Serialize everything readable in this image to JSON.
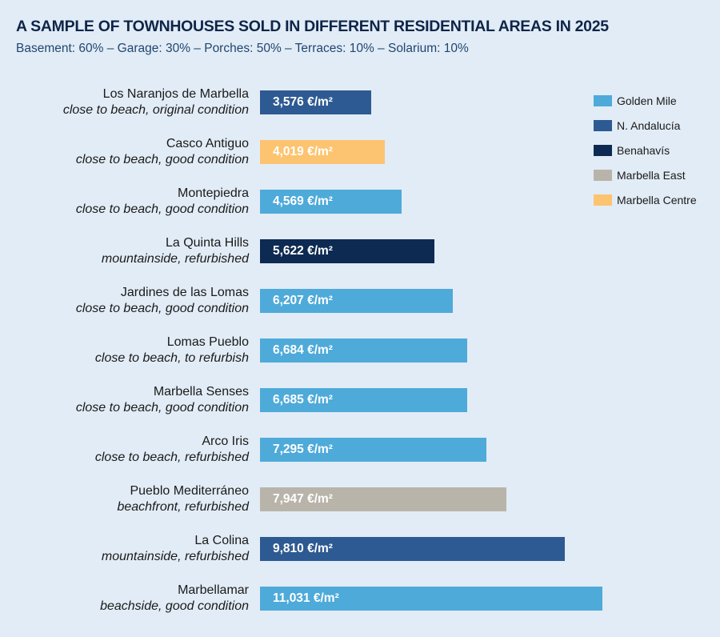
{
  "chart_data": {
    "type": "bar",
    "orientation": "horizontal",
    "title": "A SAMPLE OF TOWNHOUSES SOLD IN DIFFERENT RESIDENTIAL AREAS IN 2025",
    "subtitle": "Basement: 60% – Garage: 30% – Porches: 50% – Terraces: 10% – Solarium: 10%",
    "unit": "€/m²",
    "legend_position": "top-right",
    "legend": [
      {
        "name": "Golden Mile",
        "color": "#4eaad9"
      },
      {
        "name": "N. Andalucía",
        "color": "#2d5a92"
      },
      {
        "name": "Benahavís",
        "color": "#0d2a52"
      },
      {
        "name": "Marbella East",
        "color": "#b9b4aa"
      },
      {
        "name": "Marbella Centre",
        "color": "#fcc470"
      }
    ],
    "bars": [
      {
        "name": "Los Naranjos de Marbella",
        "desc": "close to beach, original condition",
        "value": 3576,
        "label": "3,576 €/m²",
        "area": 1
      },
      {
        "name": "Casco Antiguo",
        "desc": "close to beach, good condition",
        "value": 4019,
        "label": "4,019 €/m²",
        "area": 4
      },
      {
        "name": "Montepiedra",
        "desc": "close to beach, good condition",
        "value": 4569,
        "label": "4,569 €/m²",
        "area": 0
      },
      {
        "name": "La Quinta Hills",
        "desc": "mountainside, refurbished",
        "value": 5622,
        "label": "5,622 €/m²",
        "area": 2
      },
      {
        "name": "Jardines de las Lomas",
        "desc": "close to beach, good condition",
        "value": 6207,
        "label": "6,207 €/m²",
        "area": 0
      },
      {
        "name": "Lomas Pueblo",
        "desc": "close to beach, to refurbish",
        "value": 6684,
        "label": "6,684 €/m²",
        "area": 0
      },
      {
        "name": "Marbella Senses",
        "desc": "close to beach, good condition",
        "value": 6685,
        "label": "6,685 €/m²",
        "area": 0
      },
      {
        "name": "Arco Iris",
        "desc": "close to beach, refurbished",
        "value": 7295,
        "label": "7,295 €/m²",
        "area": 0
      },
      {
        "name": "Pueblo Mediterráneo",
        "desc": "beachfront, refurbished",
        "value": 7947,
        "label": "7,947 €/m²",
        "area": 3
      },
      {
        "name": "La Colina",
        "desc": "mountainside, refurbished",
        "value": 9810,
        "label": "9,810 €/m²",
        "area": 1
      },
      {
        "name": "Marbellamar",
        "desc": "beachside, good condition",
        "value": 11031,
        "label": "11,031 €/m²",
        "area": 0
      }
    ]
  }
}
